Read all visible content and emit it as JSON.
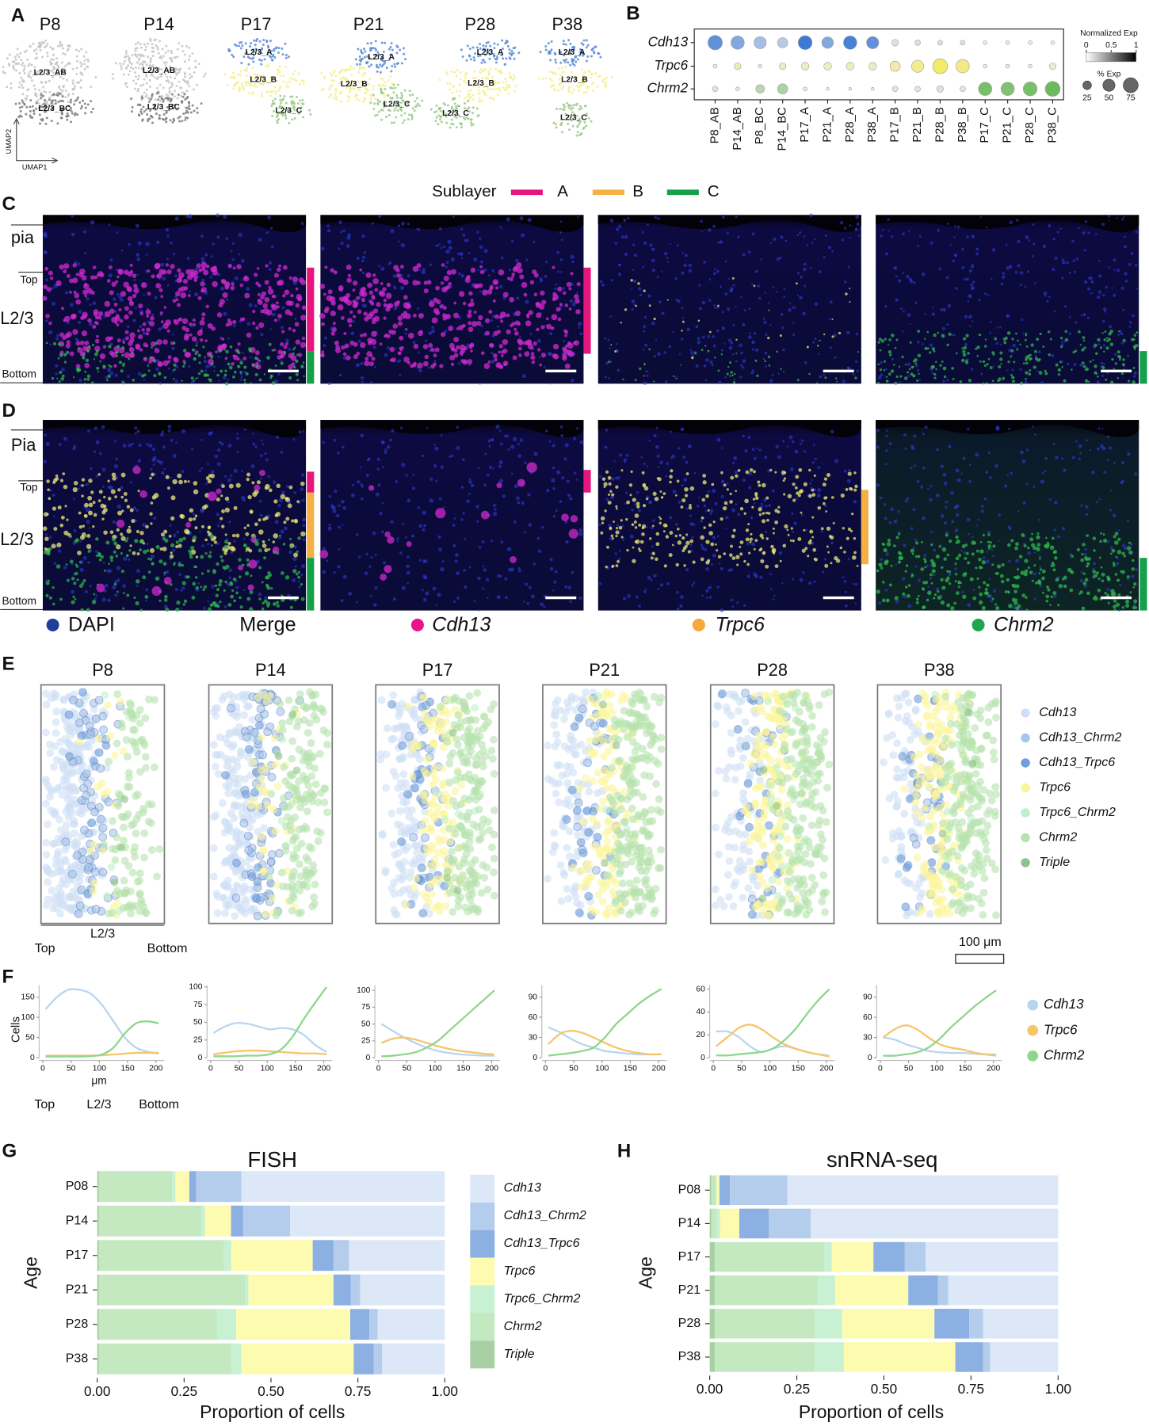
{
  "panel_labels": [
    "A",
    "B",
    "C",
    "D",
    "E",
    "F",
    "G",
    "H"
  ],
  "umap": {
    "ages": [
      "P8",
      "P14",
      "P17",
      "P21",
      "P28",
      "P38"
    ],
    "clusters": [
      [
        "L2/3_AB",
        "L2/3_BC"
      ],
      [
        "L2/3_AB",
        "L2/3_BC"
      ],
      [
        "L2/3_A",
        "L2/3_B",
        "L2/3_C"
      ],
      [
        "L2/3_A",
        "L2/3_B",
        "L2/3_C"
      ],
      [
        "L2/3_A",
        "L2/3_B",
        "L2/3_C"
      ],
      [
        "L2/3_A",
        "L2/3_B",
        "L2/3_C"
      ]
    ],
    "x_label": "UMAP1",
    "y_label": "UMAP2"
  },
  "sublayer": {
    "title": "Sublayer",
    "items": [
      {
        "name": "A",
        "color": "#e5177f"
      },
      {
        "name": "B",
        "color": "#f7b043"
      },
      {
        "name": "C",
        "color": "#15a04a"
      }
    ]
  },
  "fish_images": {
    "C_labels": [
      "pia",
      "Top",
      "L2/3",
      "Bottom"
    ],
    "D_labels": [
      "Pia",
      "Top",
      "L2/3",
      "Bottom"
    ],
    "channels": [
      {
        "name": "DAPI",
        "color": "#1f3d9a"
      },
      {
        "name": "Merge"
      },
      {
        "name": "Cdh13",
        "color": "#e8168a"
      },
      {
        "name": "Trpc6",
        "color": "#f7a838"
      },
      {
        "name": "Chrm2",
        "color": "#1ea64e"
      }
    ]
  },
  "spatial": {
    "ages": [
      "P8",
      "P14",
      "P17",
      "P21",
      "P28",
      "P38"
    ],
    "legend": [
      {
        "name": "Cdh13",
        "color": "#cfe0f5"
      },
      {
        "name": "Cdh13_Chrm2",
        "color": "#a9c4ea"
      },
      {
        "name": "Cdh13_Trpc6",
        "color": "#6e9edf"
      },
      {
        "name": "Trpc6",
        "color": "#fbf59a"
      },
      {
        "name": "Trpc6_Chrm2",
        "color": "#bff0c9"
      },
      {
        "name": "Chrm2",
        "color": "#b6e3ad"
      },
      {
        "name": "Triple",
        "color": "#8fc28a"
      }
    ],
    "axis_label": "L2/3",
    "ends": [
      "Top",
      "Bottom"
    ],
    "scale": "100 μm"
  },
  "chart_data": [
    {
      "type": "dot",
      "categories": [
        "P8_AB",
        "P14_AB",
        "P8_BC",
        "P14_BC",
        "P17_A",
        "P21_A",
        "P28_A",
        "P38_A",
        "P17_B",
        "P21_B",
        "P28_B",
        "P38_B",
        "P17_C",
        "P21_C",
        "P28_C",
        "P38_C"
      ],
      "series": [
        {
          "name": "Cdh13",
          "color": "#3d7ad6",
          "values": [
            70,
            60,
            50,
            35,
            65,
            45,
            60,
            50,
            15,
            10,
            8,
            8,
            5,
            5,
            5,
            5
          ],
          "norm": [
            0.8,
            0.6,
            0.4,
            0.3,
            1,
            0.6,
            0.95,
            0.8,
            0.1,
            0.1,
            0.1,
            0.1,
            0,
            0,
            0,
            0
          ]
        },
        {
          "name": "Trpc6",
          "color": "#f3ea6c",
          "values": [
            5,
            15,
            5,
            15,
            20,
            20,
            20,
            20,
            35,
            50,
            75,
            60,
            5,
            5,
            5,
            15
          ],
          "norm": [
            0.05,
            0.4,
            0.05,
            0.3,
            0.3,
            0.3,
            0.3,
            0.3,
            0.5,
            0.7,
            1,
            0.8,
            0.05,
            0.05,
            0.05,
            0.2
          ]
        },
        {
          "name": "Chrm2",
          "color": "#6cba5c",
          "values": [
            10,
            5,
            25,
            35,
            5,
            3,
            3,
            3,
            10,
            10,
            15,
            10,
            60,
            60,
            65,
            75
          ],
          "norm": [
            0.1,
            0.05,
            0.4,
            0.5,
            0.05,
            0.02,
            0.02,
            0.02,
            0.1,
            0.1,
            0.15,
            0.1,
            0.9,
            0.85,
            0.9,
            1
          ]
        }
      ],
      "color_legend": {
        "title": "Normalized Exp",
        "ticks": [
          0,
          0.5,
          1
        ]
      },
      "size_legend": {
        "title": "% Exp",
        "values": [
          25,
          50,
          75
        ]
      }
    },
    {
      "type": "line",
      "y_label": "Cells",
      "x_label": "μm",
      "annotations": [
        "Top",
        "L2/3",
        "Bottom"
      ],
      "x": [
        5,
        25,
        45,
        65,
        85,
        105,
        125,
        145,
        165,
        185,
        205
      ],
      "xlim": [
        0,
        215
      ],
      "xticks": [
        0,
        50,
        100,
        150,
        200
      ],
      "ylim": [
        0,
        175
      ],
      "yticks": [
        0,
        50,
        100,
        150
      ],
      "series": [
        {
          "name": "Cdh13",
          "color": "#b9d5ee",
          "values": [
            120,
            150,
            168,
            168,
            158,
            130,
            90,
            50,
            25,
            15,
            10
          ]
        },
        {
          "name": "Trpc6",
          "color": "#f6c56a",
          "values": [
            5,
            5,
            5,
            5,
            5,
            6,
            8,
            10,
            12,
            12,
            12
          ]
        },
        {
          "name": "Chrm2",
          "color": "#8fd68a",
          "values": [
            3,
            3,
            3,
            3,
            4,
            8,
            25,
            60,
            85,
            90,
            85
          ]
        }
      ]
    },
    {
      "type": "line",
      "x": [
        5,
        25,
        45,
        65,
        85,
        105,
        125,
        145,
        165,
        185,
        205
      ],
      "xlim": [
        0,
        215
      ],
      "xticks": [
        0,
        50,
        100,
        150,
        200
      ],
      "ylim": [
        0,
        100
      ],
      "yticks": [
        0,
        25,
        50,
        75,
        100
      ],
      "series": [
        {
          "color": "#b9d5ee",
          "values": [
            35,
            44,
            49,
            48,
            44,
            40,
            42,
            40,
            32,
            18,
            8
          ]
        },
        {
          "color": "#f6c56a",
          "values": [
            5,
            7,
            9,
            10,
            10,
            9,
            8,
            7,
            6,
            6,
            5
          ]
        },
        {
          "color": "#8fd68a",
          "values": [
            2,
            2,
            2,
            3,
            3,
            5,
            12,
            30,
            55,
            78,
            100
          ]
        }
      ]
    },
    {
      "type": "line",
      "x": [
        5,
        25,
        45,
        65,
        85,
        105,
        125,
        145,
        165,
        185,
        205
      ],
      "xlim": [
        0,
        215
      ],
      "xticks": [
        0,
        50,
        100,
        150,
        200
      ],
      "ylim": [
        0,
        105
      ],
      "yticks": [
        0,
        25,
        50,
        75,
        100
      ],
      "series": [
        {
          "color": "#b9d5ee",
          "values": [
            50,
            40,
            30,
            22,
            15,
            10,
            7,
            5,
            4,
            3,
            3
          ]
        },
        {
          "color": "#f6c56a",
          "values": [
            22,
            28,
            30,
            27,
            22,
            17,
            13,
            10,
            8,
            6,
            5
          ]
        },
        {
          "color": "#8fd68a",
          "values": [
            2,
            3,
            5,
            8,
            15,
            25,
            40,
            55,
            70,
            85,
            100
          ]
        }
      ]
    },
    {
      "type": "line",
      "x": [
        5,
        25,
        45,
        65,
        85,
        105,
        125,
        145,
        165,
        185,
        205
      ],
      "xlim": [
        0,
        215
      ],
      "xticks": [
        0,
        50,
        100,
        150,
        200
      ],
      "ylim": [
        0,
        105
      ],
      "yticks": [
        0,
        30,
        60,
        90
      ],
      "series": [
        {
          "color": "#b9d5ee",
          "values": [
            45,
            38,
            28,
            20,
            15,
            10,
            8,
            6,
            5,
            5,
            5
          ]
        },
        {
          "color": "#f6c56a",
          "values": [
            20,
            35,
            40,
            37,
            30,
            22,
            15,
            10,
            7,
            5,
            5
          ]
        },
        {
          "color": "#8fd68a",
          "values": [
            3,
            5,
            7,
            10,
            15,
            30,
            50,
            65,
            80,
            92,
            102
          ]
        }
      ]
    },
    {
      "type": "line",
      "x": [
        5,
        25,
        45,
        65,
        85,
        105,
        125,
        145,
        165,
        185,
        205
      ],
      "xlim": [
        0,
        215
      ],
      "xticks": [
        0,
        50,
        100,
        150,
        200
      ],
      "ylim": [
        0,
        62
      ],
      "yticks": [
        0,
        20,
        40,
        60
      ],
      "series": [
        {
          "color": "#b9d5ee",
          "values": [
            23,
            23,
            18,
            10,
            5,
            8,
            10,
            8,
            5,
            3,
            2
          ]
        },
        {
          "color": "#f6c56a",
          "values": [
            10,
            18,
            26,
            29,
            25,
            18,
            12,
            8,
            5,
            3,
            1
          ]
        },
        {
          "color": "#8fd68a",
          "values": [
            2,
            2,
            3,
            4,
            5,
            8,
            15,
            25,
            38,
            50,
            60
          ]
        }
      ]
    },
    {
      "type": "line",
      "x": [
        5,
        25,
        45,
        65,
        85,
        105,
        125,
        145,
        165,
        185,
        205
      ],
      "xlim": [
        0,
        215
      ],
      "xticks": [
        0,
        50,
        100,
        150,
        200
      ],
      "ylim": [
        0,
        105
      ],
      "yticks": [
        0,
        30,
        60,
        90
      ],
      "series": [
        {
          "color": "#b9d5ee",
          "values": [
            30,
            27,
            20,
            15,
            10,
            8,
            7,
            7,
            6,
            5,
            5
          ]
        },
        {
          "color": "#f6c56a",
          "values": [
            30,
            42,
            48,
            42,
            30,
            20,
            15,
            12,
            8,
            5,
            3
          ]
        },
        {
          "color": "#8fd68a",
          "values": [
            3,
            3,
            5,
            8,
            15,
            28,
            45,
            60,
            75,
            88,
            100
          ]
        }
      ]
    },
    {
      "type": "barh",
      "stacked": true,
      "title": "FISH",
      "y_label": "Age",
      "x_label": "Proportion of cells",
      "legend": "right",
      "categories": [
        "P08",
        "P14",
        "P17",
        "P21",
        "P28",
        "P38"
      ],
      "xlim": [
        0,
        1
      ],
      "xticks": [
        {
          "value": 0,
          "label": "0.00"
        },
        0.25,
        {
          "value": 0.5,
          "label": "0.50"
        },
        0.75,
        {
          "value": 1,
          "label": "1.00"
        }
      ],
      "series": [
        {
          "name": "Cdh13",
          "color": "#dce8f7",
          "values": [
            0.585,
            0.445,
            0.275,
            0.243,
            0.193,
            0.18
          ]
        },
        {
          "name": "Cdh13_Chrm2",
          "color": "#b5cdec",
          "values": [
            0.13,
            0.135,
            0.045,
            0.027,
            0.024,
            0.024
          ]
        },
        {
          "name": "Cdh13_Trpc6",
          "color": "#8cb0e2",
          "values": [
            0.02,
            0.035,
            0.06,
            0.05,
            0.055,
            0.058
          ]
        },
        {
          "name": "Trpc6",
          "color": "#fdfbb0",
          "values": [
            0.04,
            0.075,
            0.235,
            0.245,
            0.328,
            0.323
          ]
        },
        {
          "name": "Trpc6_Chrm2",
          "color": "#c8f0d3",
          "values": [
            0.01,
            0.01,
            0.02,
            0.01,
            0.055,
            0.03
          ]
        },
        {
          "name": "Chrm2",
          "color": "#c4e9c1",
          "values": [
            0.21,
            0.295,
            0.36,
            0.42,
            0.34,
            0.38
          ]
        },
        {
          "name": "Triple",
          "color": "#a8d0a4",
          "values": [
            0.005,
            0.005,
            0.005,
            0.005,
            0.005,
            0.005
          ]
        }
      ]
    },
    {
      "type": "barh",
      "stacked": true,
      "title": "snRNA-seq",
      "y_label": "Age",
      "x_label": "Proportion of cells",
      "categories": [
        "P08",
        "P14",
        "P17",
        "P21",
        "P28",
        "P38"
      ],
      "xlim": [
        0,
        1
      ],
      "xticks": [
        {
          "value": 0,
          "label": "0.00"
        },
        0.25,
        {
          "value": 0.5,
          "label": "0.50"
        },
        0.75,
        {
          "value": 1,
          "label": "1.00"
        }
      ],
      "series": [
        {
          "color": "#dce8f7",
          "values": [
            0.777,
            0.71,
            0.38,
            0.315,
            0.215,
            0.195
          ]
        },
        {
          "color": "#b5cdec",
          "values": [
            0.165,
            0.12,
            0.06,
            0.03,
            0.04,
            0.02
          ]
        },
        {
          "color": "#8cb0e2",
          "values": [
            0.03,
            0.085,
            0.09,
            0.085,
            0.1,
            0.08
          ]
        },
        {
          "color": "#fdfbb0",
          "values": [
            0.008,
            0.055,
            0.12,
            0.21,
            0.265,
            0.32
          ]
        },
        {
          "color": "#c8f0d3",
          "values": [
            0.003,
            0.01,
            0.02,
            0.05,
            0.08,
            0.085
          ]
        },
        {
          "color": "#c4e9c1",
          "values": [
            0.012,
            0.015,
            0.315,
            0.295,
            0.285,
            0.285
          ]
        },
        {
          "color": "#a8d0a4",
          "values": [
            0.005,
            0.005,
            0.015,
            0.015,
            0.015,
            0.015
          ]
        }
      ]
    }
  ]
}
